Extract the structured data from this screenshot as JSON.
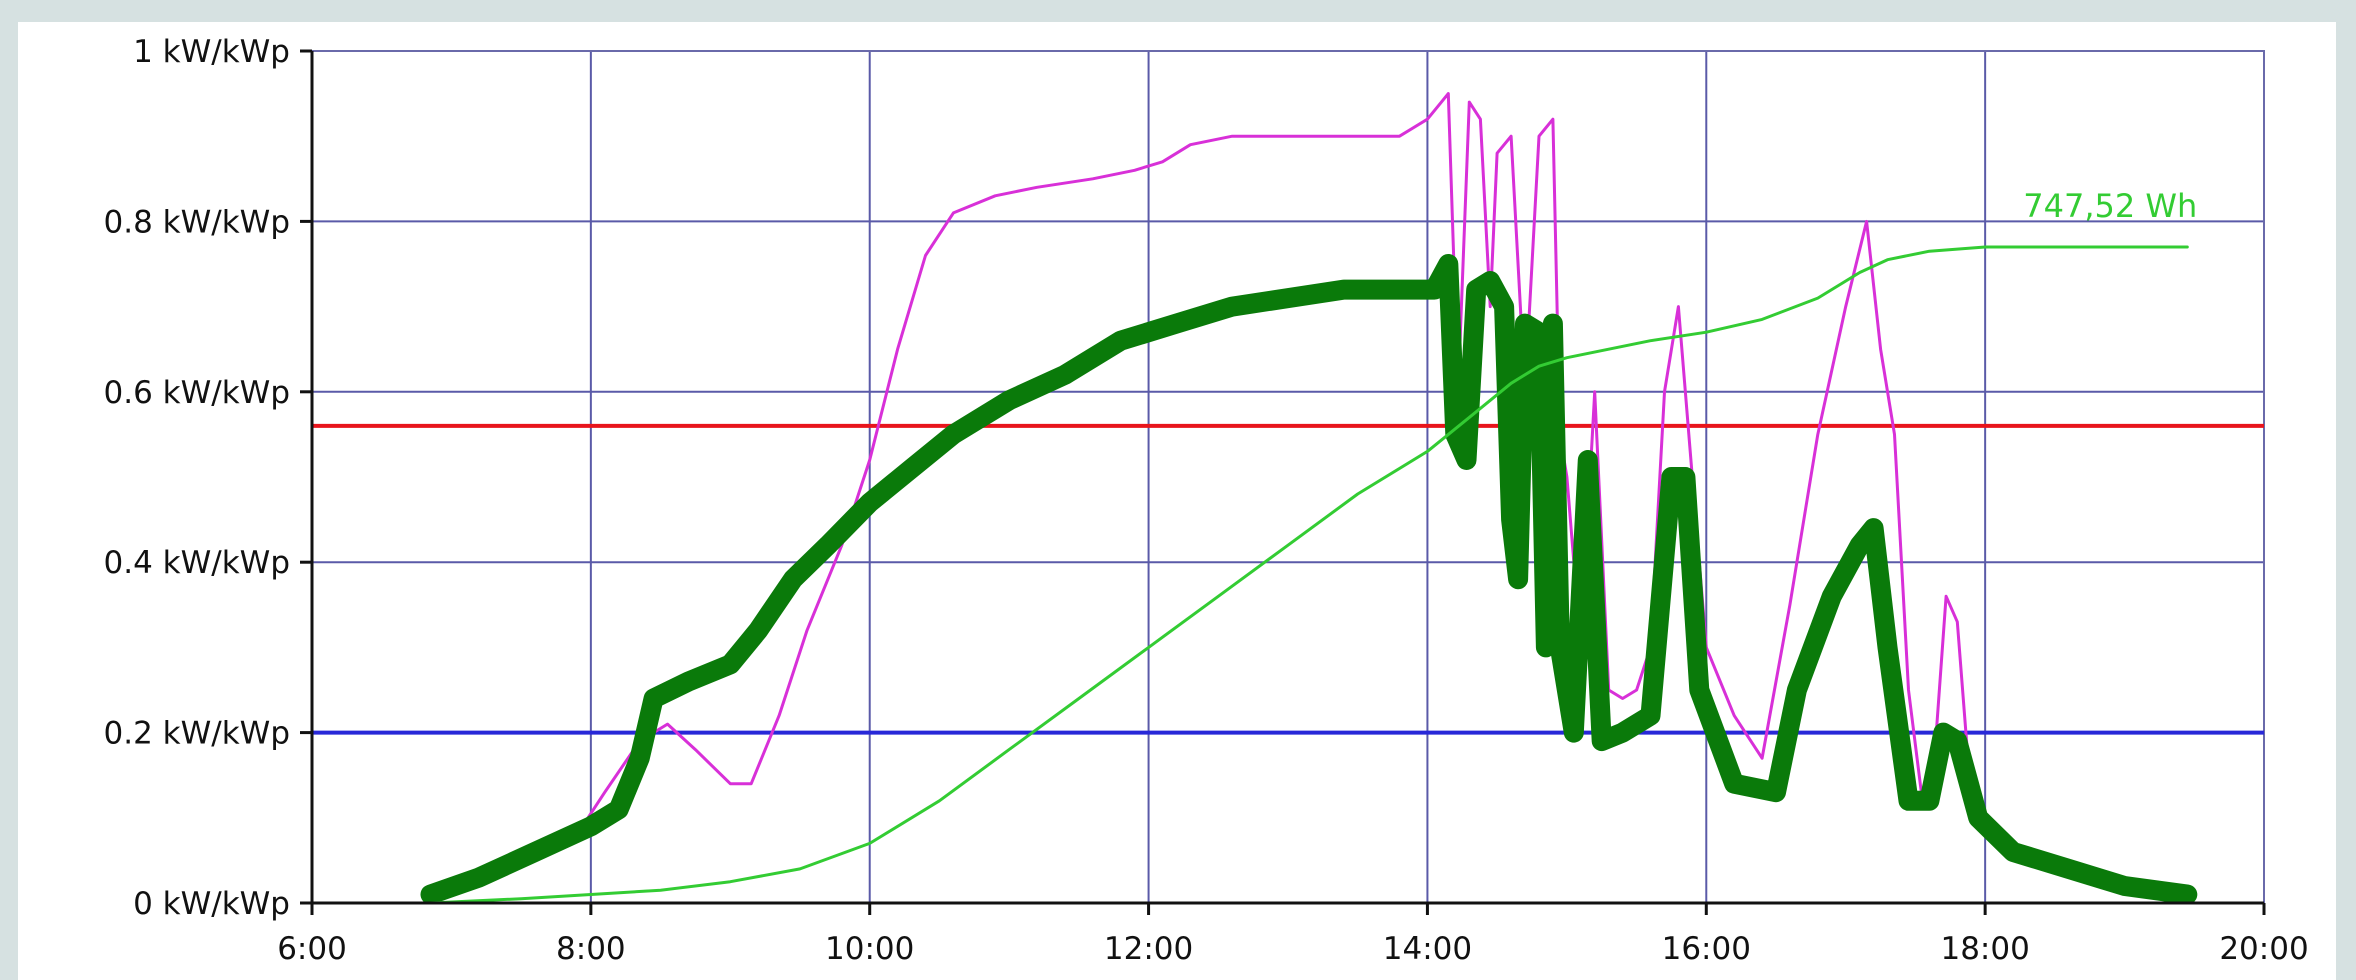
{
  "chart_data": {
    "type": "line",
    "title": "",
    "xlabel": "",
    "ylabel": "",
    "x_unit": "hours",
    "xlim": [
      6,
      20
    ],
    "ylim": [
      0,
      1
    ],
    "grid": true,
    "legend": "none",
    "x_ticks": [
      {
        "value": 6,
        "label": "6:00"
      },
      {
        "value": 8,
        "label": "8:00"
      },
      {
        "value": 10,
        "label": "10:00"
      },
      {
        "value": 12,
        "label": "12:00"
      },
      {
        "value": 14,
        "label": "14:00"
      },
      {
        "value": 16,
        "label": "16:00"
      },
      {
        "value": 18,
        "label": "18:00"
      },
      {
        "value": 20,
        "label": "20:00"
      }
    ],
    "y_ticks": [
      {
        "value": 0,
        "label": "0 kW/kWp"
      },
      {
        "value": 0.2,
        "label": "0.2 kW/kWp"
      },
      {
        "value": 0.4,
        "label": "0.4 kW/kWp"
      },
      {
        "value": 0.6,
        "label": "0.6 kW/kWp"
      },
      {
        "value": 0.8,
        "label": "0.8 kW/kWp"
      },
      {
        "value": 1,
        "label": "1 kW/kWp"
      }
    ],
    "reference_lines": [
      {
        "y": 0.56,
        "color": "#e8141c"
      },
      {
        "y": 0.2,
        "color": "#2828d8"
      }
    ],
    "series": [
      {
        "color": "#d830d8",
        "points": [
          [
            6.85,
            0
          ],
          [
            7.0,
            0.01
          ],
          [
            7.3,
            0.03
          ],
          [
            7.6,
            0.05
          ],
          [
            7.9,
            0.08
          ],
          [
            8.1,
            0.13
          ],
          [
            8.35,
            0.19
          ],
          [
            8.55,
            0.21
          ],
          [
            8.75,
            0.18
          ],
          [
            9.0,
            0.14
          ],
          [
            9.15,
            0.14
          ],
          [
            9.35,
            0.22
          ],
          [
            9.55,
            0.32
          ],
          [
            9.8,
            0.42
          ],
          [
            10.0,
            0.52
          ],
          [
            10.2,
            0.65
          ],
          [
            10.4,
            0.76
          ],
          [
            10.6,
            0.81
          ],
          [
            10.9,
            0.83
          ],
          [
            11.2,
            0.84
          ],
          [
            11.6,
            0.85
          ],
          [
            11.9,
            0.86
          ],
          [
            12.1,
            0.87
          ],
          [
            12.3,
            0.89
          ],
          [
            12.6,
            0.9
          ],
          [
            13.0,
            0.9
          ],
          [
            13.4,
            0.9
          ],
          [
            13.8,
            0.9
          ],
          [
            14.0,
            0.92
          ],
          [
            14.1,
            0.94
          ],
          [
            14.15,
            0.95
          ],
          [
            14.22,
            0.6
          ],
          [
            14.3,
            0.94
          ],
          [
            14.38,
            0.92
          ],
          [
            14.45,
            0.7
          ],
          [
            14.5,
            0.88
          ],
          [
            14.6,
            0.9
          ],
          [
            14.7,
            0.6
          ],
          [
            14.8,
            0.9
          ],
          [
            14.9,
            0.92
          ],
          [
            14.95,
            0.55
          ],
          [
            15.0,
            0.5
          ],
          [
            15.1,
            0.3
          ],
          [
            15.2,
            0.6
          ],
          [
            15.3,
            0.25
          ],
          [
            15.4,
            0.24
          ],
          [
            15.5,
            0.25
          ],
          [
            15.6,
            0.3
          ],
          [
            15.7,
            0.6
          ],
          [
            15.8,
            0.7
          ],
          [
            15.9,
            0.5
          ],
          [
            16.0,
            0.3
          ],
          [
            16.2,
            0.22
          ],
          [
            16.4,
            0.17
          ],
          [
            16.6,
            0.35
          ],
          [
            16.8,
            0.55
          ],
          [
            17.0,
            0.7
          ],
          [
            17.15,
            0.8
          ],
          [
            17.25,
            0.65
          ],
          [
            17.35,
            0.55
          ],
          [
            17.45,
            0.25
          ],
          [
            17.55,
            0.12
          ],
          [
            17.65,
            0.2
          ],
          [
            17.72,
            0.36
          ],
          [
            17.8,
            0.33
          ],
          [
            17.9,
            0.12
          ],
          [
            18.1,
            0.07
          ],
          [
            18.5,
            0.05
          ],
          [
            18.9,
            0.03
          ],
          [
            19.2,
            0.01
          ],
          [
            19.45,
            0
          ]
        ]
      },
      {
        "color": "#0a7a0a",
        "points": [
          [
            6.85,
            0.01
          ],
          [
            7.2,
            0.03
          ],
          [
            7.6,
            0.06
          ],
          [
            8.0,
            0.09
          ],
          [
            8.2,
            0.11
          ],
          [
            8.35,
            0.17
          ],
          [
            8.45,
            0.24
          ],
          [
            8.7,
            0.26
          ],
          [
            9.0,
            0.28
          ],
          [
            9.2,
            0.32
          ],
          [
            9.45,
            0.38
          ],
          [
            9.7,
            0.42
          ],
          [
            10.0,
            0.47
          ],
          [
            10.3,
            0.51
          ],
          [
            10.6,
            0.55
          ],
          [
            11.0,
            0.59
          ],
          [
            11.4,
            0.62
          ],
          [
            11.8,
            0.66
          ],
          [
            12.2,
            0.68
          ],
          [
            12.6,
            0.7
          ],
          [
            13.0,
            0.71
          ],
          [
            13.4,
            0.72
          ],
          [
            13.8,
            0.72
          ],
          [
            14.05,
            0.72
          ],
          [
            14.15,
            0.75
          ],
          [
            14.2,
            0.55
          ],
          [
            14.28,
            0.52
          ],
          [
            14.35,
            0.72
          ],
          [
            14.45,
            0.73
          ],
          [
            14.55,
            0.7
          ],
          [
            14.6,
            0.45
          ],
          [
            14.65,
            0.38
          ],
          [
            14.7,
            0.68
          ],
          [
            14.8,
            0.67
          ],
          [
            14.85,
            0.3
          ],
          [
            14.9,
            0.68
          ],
          [
            14.95,
            0.3
          ],
          [
            15.05,
            0.2
          ],
          [
            15.15,
            0.52
          ],
          [
            15.25,
            0.19
          ],
          [
            15.4,
            0.2
          ],
          [
            15.6,
            0.22
          ],
          [
            15.75,
            0.5
          ],
          [
            15.85,
            0.5
          ],
          [
            15.95,
            0.25
          ],
          [
            16.2,
            0.14
          ],
          [
            16.5,
            0.13
          ],
          [
            16.65,
            0.25
          ],
          [
            16.9,
            0.36
          ],
          [
            17.1,
            0.42
          ],
          [
            17.2,
            0.44
          ],
          [
            17.3,
            0.3
          ],
          [
            17.45,
            0.12
          ],
          [
            17.6,
            0.12
          ],
          [
            17.7,
            0.2
          ],
          [
            17.8,
            0.19
          ],
          [
            17.95,
            0.1
          ],
          [
            18.2,
            0.06
          ],
          [
            18.6,
            0.04
          ],
          [
            19.0,
            0.02
          ],
          [
            19.45,
            0.01
          ]
        ]
      },
      {
        "color": "#33cc33",
        "points": [
          [
            6.85,
            0
          ],
          [
            7.5,
            0.005
          ],
          [
            8.0,
            0.01
          ],
          [
            8.5,
            0.015
          ],
          [
            9.0,
            0.025
          ],
          [
            9.5,
            0.04
          ],
          [
            10.0,
            0.07
          ],
          [
            10.5,
            0.12
          ],
          [
            11.0,
            0.18
          ],
          [
            11.5,
            0.24
          ],
          [
            12.0,
            0.3
          ],
          [
            12.5,
            0.36
          ],
          [
            13.0,
            0.42
          ],
          [
            13.5,
            0.48
          ],
          [
            14.0,
            0.53
          ],
          [
            14.3,
            0.57
          ],
          [
            14.6,
            0.61
          ],
          [
            14.8,
            0.63
          ],
          [
            15.0,
            0.64
          ],
          [
            15.3,
            0.65
          ],
          [
            15.6,
            0.66
          ],
          [
            16.0,
            0.67
          ],
          [
            16.4,
            0.685
          ],
          [
            16.8,
            0.71
          ],
          [
            17.1,
            0.74
          ],
          [
            17.3,
            0.755
          ],
          [
            17.6,
            0.765
          ],
          [
            18.0,
            0.77
          ],
          [
            18.5,
            0.77
          ],
          [
            19.0,
            0.77
          ],
          [
            19.45,
            0.77
          ]
        ],
        "end_label": "747,52 Wh"
      }
    ]
  }
}
